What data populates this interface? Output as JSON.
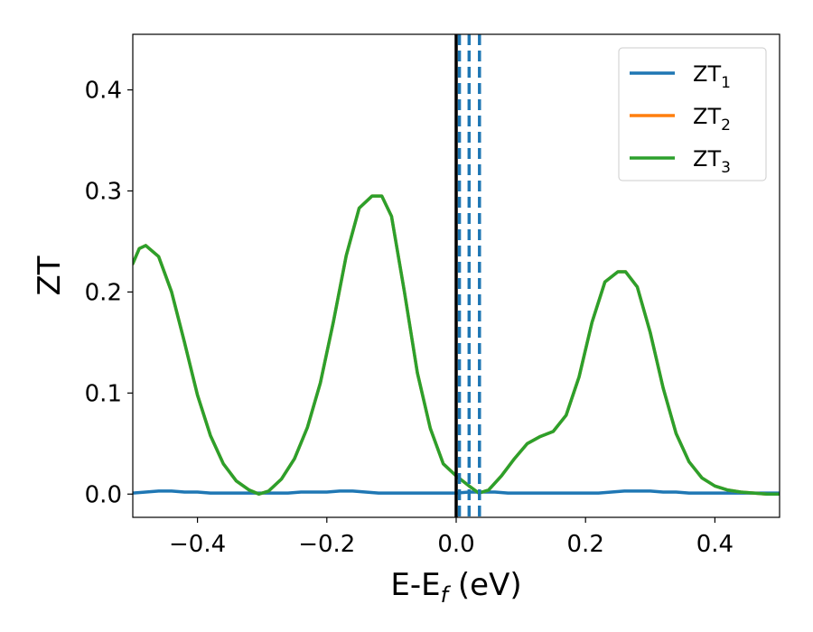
{
  "chart_data": {
    "type": "line",
    "xlabel": "E-E_f (eV)",
    "xlabel_main": "E-E",
    "xlabel_sub": "f",
    "xlabel_tail": " (eV)",
    "ylabel": "ZT",
    "xlim": [
      -0.5,
      0.5
    ],
    "ylim": [
      -0.023,
      0.455
    ],
    "x_ticks": [
      -0.4,
      -0.2,
      0.0,
      0.2,
      0.4
    ],
    "x_tick_labels": [
      "−0.4",
      "−0.2",
      "0.0",
      "0.2",
      "0.4"
    ],
    "y_ticks": [
      0.0,
      0.1,
      0.2,
      0.3,
      0.4
    ],
    "y_tick_labels": [
      "0.0",
      "0.1",
      "0.2",
      "0.3",
      "0.4"
    ],
    "legend_position": "top-right",
    "grid": false,
    "series": [
      {
        "name": "ZT_1",
        "label_main": "ZT",
        "label_sub": "1",
        "color": "#1f77b4",
        "x": [
          -0.5,
          -0.48,
          -0.46,
          -0.44,
          -0.42,
          -0.4,
          -0.38,
          -0.36,
          -0.34,
          -0.32,
          -0.3,
          -0.28,
          -0.26,
          -0.24,
          -0.22,
          -0.2,
          -0.18,
          -0.16,
          -0.14,
          -0.12,
          -0.1,
          -0.08,
          -0.06,
          -0.04,
          -0.02,
          0.0,
          0.02,
          0.04,
          0.06,
          0.08,
          0.1,
          0.12,
          0.14,
          0.16,
          0.18,
          0.2,
          0.22,
          0.24,
          0.26,
          0.28,
          0.3,
          0.32,
          0.34,
          0.36,
          0.38,
          0.4,
          0.42,
          0.44,
          0.46,
          0.48,
          0.5
        ],
        "y": [
          0.001,
          0.002,
          0.003,
          0.003,
          0.002,
          0.002,
          0.001,
          0.001,
          0.001,
          0.001,
          0.001,
          0.001,
          0.001,
          0.002,
          0.002,
          0.002,
          0.003,
          0.003,
          0.002,
          0.001,
          0.001,
          0.001,
          0.001,
          0.001,
          0.001,
          0.001,
          0.002,
          0.002,
          0.002,
          0.001,
          0.001,
          0.001,
          0.001,
          0.001,
          0.001,
          0.001,
          0.001,
          0.002,
          0.003,
          0.003,
          0.003,
          0.002,
          0.002,
          0.001,
          0.001,
          0.001,
          0.001,
          0.001,
          0.001,
          0.001,
          0.001
        ]
      },
      {
        "name": "ZT_2",
        "label_main": "ZT",
        "label_sub": "2",
        "color": "#ff7f0e",
        "x": [
          -0.5,
          -0.49,
          -0.48,
          -0.46,
          -0.44,
          -0.42,
          -0.4,
          -0.38,
          -0.36,
          -0.34,
          -0.32,
          -0.305,
          -0.29,
          -0.27,
          -0.25,
          -0.23,
          -0.21,
          -0.19,
          -0.17,
          -0.15,
          -0.13,
          -0.115,
          -0.1,
          -0.08,
          -0.06,
          -0.04,
          -0.02,
          0.0,
          0.02,
          0.035,
          0.05,
          0.07,
          0.09,
          0.11,
          0.13,
          0.15,
          0.17,
          0.19,
          0.21,
          0.23,
          0.25,
          0.262,
          0.28,
          0.3,
          0.32,
          0.34,
          0.36,
          0.38,
          0.4,
          0.42,
          0.44,
          0.46,
          0.48,
          0.5
        ],
        "y": [
          0.228,
          0.243,
          0.246,
          0.235,
          0.2,
          0.15,
          0.098,
          0.058,
          0.03,
          0.013,
          0.004,
          0.0,
          0.003,
          0.015,
          0.035,
          0.066,
          0.11,
          0.17,
          0.236,
          0.283,
          0.295,
          0.295,
          0.275,
          0.2,
          0.12,
          0.065,
          0.03,
          0.018,
          0.008,
          0.001,
          0.004,
          0.018,
          0.035,
          0.05,
          0.057,
          0.062,
          0.078,
          0.116,
          0.17,
          0.21,
          0.22,
          0.22,
          0.205,
          0.16,
          0.105,
          0.06,
          0.032,
          0.016,
          0.008,
          0.004,
          0.002,
          0.001,
          0.0,
          0.0
        ]
      },
      {
        "name": "ZT_3",
        "label_main": "ZT",
        "label_sub": "3",
        "color": "#2ca02c",
        "x": [
          -0.5,
          -0.49,
          -0.48,
          -0.46,
          -0.44,
          -0.42,
          -0.4,
          -0.38,
          -0.36,
          -0.34,
          -0.32,
          -0.305,
          -0.29,
          -0.27,
          -0.25,
          -0.23,
          -0.21,
          -0.19,
          -0.17,
          -0.15,
          -0.13,
          -0.115,
          -0.1,
          -0.08,
          -0.06,
          -0.04,
          -0.02,
          0.0,
          0.02,
          0.035,
          0.05,
          0.07,
          0.09,
          0.11,
          0.13,
          0.15,
          0.17,
          0.19,
          0.21,
          0.23,
          0.25,
          0.262,
          0.28,
          0.3,
          0.32,
          0.34,
          0.36,
          0.38,
          0.4,
          0.42,
          0.44,
          0.46,
          0.48,
          0.5
        ],
        "y": [
          0.228,
          0.243,
          0.246,
          0.235,
          0.2,
          0.15,
          0.098,
          0.058,
          0.03,
          0.013,
          0.004,
          0.0,
          0.003,
          0.015,
          0.035,
          0.066,
          0.11,
          0.17,
          0.236,
          0.283,
          0.295,
          0.295,
          0.275,
          0.2,
          0.12,
          0.065,
          0.03,
          0.018,
          0.008,
          0.001,
          0.004,
          0.018,
          0.035,
          0.05,
          0.057,
          0.062,
          0.078,
          0.116,
          0.17,
          0.21,
          0.22,
          0.22,
          0.205,
          0.16,
          0.105,
          0.06,
          0.032,
          0.016,
          0.008,
          0.004,
          0.002,
          0.001,
          0.0,
          0.0
        ]
      }
    ],
    "vertical_lines": [
      {
        "x": 0.0,
        "style": "solid",
        "color": "#000000"
      },
      {
        "x": 0.005,
        "style": "dashed",
        "color": "#1f77b4"
      },
      {
        "x": 0.02,
        "style": "dashed",
        "color": "#1f77b4"
      },
      {
        "x": 0.036,
        "style": "dashed",
        "color": "#1f77b4"
      }
    ]
  }
}
